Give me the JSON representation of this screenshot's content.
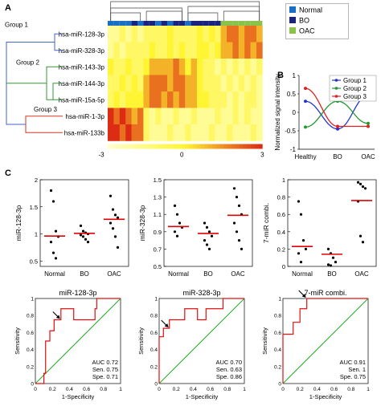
{
  "panel_labels": [
    "A",
    "B",
    "C"
  ],
  "chart_data": [
    {
      "panel": "A",
      "type": "heatmap",
      "rows": [
        "hsa-miR-128-3p",
        "hsa-miR-328-3p",
        "hsa-miR-143-3p",
        "hsa-miR-144-3p",
        "hsa-miR-15a-5p",
        "hsa-miR-1-3p",
        "hsa-miR-133b"
      ],
      "groups": [
        "Group 1",
        "Group 2",
        "Group 3"
      ],
      "group_colors": [
        "#4466cc",
        "#339933",
        "#dd3322"
      ],
      "column_classes": [
        "#1a6fc4",
        "#1a6fc4",
        "#1a6fc4",
        "#1a6fc4",
        "#1a237e",
        "#1a6fc4",
        "#1a237e",
        "#1a237e",
        "#1a6fc4",
        "#1a237e",
        "#1a6fc4",
        "#1a237e",
        "#1a237e",
        "#1a6fc4",
        "#1a237e",
        "#1a237e",
        "#1a237e",
        "#1a237e",
        "#1a237e",
        "#8bc34a",
        "#8bc34a",
        "#8bc34a",
        "#8bc34a",
        "#8bc34a",
        "#8bc34a",
        "#8bc34a"
      ],
      "legend": [
        {
          "label": "Normal",
          "color": "#1a6fc4"
        },
        {
          "label": "BO",
          "color": "#1a237e"
        },
        {
          "label": "OAC",
          "color": "#8bc34a"
        }
      ],
      "scale_ticks": [
        "-3",
        "0",
        "3"
      ],
      "values": [
        [
          -2,
          -2,
          -1,
          -2,
          -1,
          -2,
          -1,
          -1,
          -1,
          -1,
          0,
          -1,
          -1,
          -1,
          -1,
          0,
          -1,
          0,
          -1,
          1,
          2,
          2,
          1,
          2,
          2,
          1
        ],
        [
          -2,
          -1,
          -2,
          -1,
          -1,
          -1,
          -1,
          0,
          -1,
          -1,
          0,
          -1,
          0,
          -1,
          -1,
          0,
          0,
          -1,
          0,
          1,
          1,
          2,
          1,
          2,
          1,
          2
        ],
        [
          0,
          -1,
          -1,
          0,
          -1,
          -1,
          0,
          1,
          1,
          1,
          1,
          2,
          1,
          0,
          1,
          0,
          -1,
          -1,
          -2,
          -1,
          -2,
          -1,
          -2,
          -1,
          -2,
          -1
        ],
        [
          -1,
          -1,
          0,
          -1,
          0,
          -1,
          1,
          2,
          2,
          2,
          1,
          2,
          2,
          1,
          1,
          0,
          -1,
          -1,
          -1,
          -2,
          -1,
          -2,
          -1,
          -2,
          -1,
          -2
        ],
        [
          -1,
          0,
          -1,
          0,
          0,
          0,
          1,
          2,
          2,
          1,
          2,
          1,
          2,
          1,
          1,
          0,
          0,
          -1,
          -1,
          -1,
          -2,
          -1,
          -2,
          -1,
          -1,
          -2
        ],
        [
          3,
          2,
          3,
          2,
          1,
          2,
          -1,
          -2,
          -1,
          -2,
          -2,
          -1,
          -2,
          -2,
          -1,
          -2,
          -2,
          -2,
          -1,
          -2,
          -2,
          -1,
          -2,
          -1,
          -2,
          -2
        ],
        [
          3,
          3,
          2,
          3,
          2,
          2,
          -1,
          -2,
          -2,
          -2,
          -1,
          -2,
          -2,
          -1,
          -2,
          -2,
          -2,
          -1,
          -2,
          -2,
          -1,
          -2,
          -2,
          -2,
          -1,
          -2
        ]
      ]
    },
    {
      "panel": "B",
      "type": "line",
      "categories": [
        "Healthy",
        "BO",
        "OAC"
      ],
      "ylabel": "Normalized signal intensity",
      "ylim": [
        -1,
        1
      ],
      "yticks": [
        "1",
        "0.5",
        "0",
        "-0.5",
        "-1"
      ],
      "legend_position": "top-right",
      "series": [
        {
          "name": "Group 1",
          "color": "#2233cc",
          "values": [
            0.3,
            -0.45,
            0.45
          ]
        },
        {
          "name": "Group 2",
          "color": "#229933",
          "values": [
            -0.4,
            0.3,
            -0.3
          ]
        },
        {
          "name": "Group 3",
          "color": "#dd2222",
          "values": [
            0.65,
            -0.38,
            -0.38
          ]
        }
      ]
    },
    {
      "panel": "C",
      "type": "scatter",
      "ylabel": "miR-128-3p",
      "categories": [
        "Normal",
        "BO",
        "OAC"
      ],
      "ylim": [
        0.4,
        2.0
      ],
      "yticks": [
        "2",
        "1.5",
        "1",
        "0.5"
      ],
      "points": [
        [
          1.8,
          1.6,
          1.05,
          0.95,
          0.85,
          0.65,
          0.55
        ],
        [
          1.15,
          1.05,
          1.02,
          1.0,
          0.98,
          0.95,
          0.9,
          0.85
        ],
        [
          1.7,
          1.45,
          1.35,
          1.3,
          1.2,
          1.1,
          0.95,
          0.75
        ]
      ],
      "means": [
        0.96,
        1.01,
        1.27
      ]
    },
    {
      "panel": "C",
      "type": "scatter",
      "ylabel": "miR-328-3p",
      "categories": [
        "Normal",
        "BO",
        "OAC"
      ],
      "ylim": [
        0.5,
        1.5
      ],
      "yticks": [
        "1.5",
        "1.3",
        "1.1",
        "0.9",
        "0.7",
        "0.5"
      ],
      "points": [
        [
          1.2,
          1.1,
          1.0,
          0.95,
          0.9,
          0.85
        ],
        [
          1.0,
          0.95,
          0.9,
          0.85,
          0.8,
          0.75,
          0.7
        ],
        [
          1.4,
          1.3,
          1.2,
          1.1,
          1.0,
          0.9,
          0.8,
          0.7
        ]
      ],
      "means": [
        0.96,
        0.88,
        1.09
      ]
    },
    {
      "panel": "C",
      "type": "scatter",
      "ylabel": "7-miR combi.",
      "categories": [
        "Normal",
        "BO",
        "OAC"
      ],
      "ylim": [
        0,
        1
      ],
      "yticks": [
        "1",
        "0.8",
        "0.6",
        "0.4",
        "0.2",
        "0"
      ],
      "points": [
        [
          0.75,
          0.6,
          0.3,
          0.2,
          0.15,
          0.05
        ],
        [
          0.2,
          0.15,
          0.1,
          0.05,
          0.02,
          0.01
        ],
        [
          0.97,
          0.95,
          0.92,
          0.9,
          0.75,
          0.35,
          0.28
        ]
      ],
      "means": [
        0.23,
        0.14,
        0.76
      ]
    },
    {
      "panel": "C",
      "type": "line",
      "title": "miR-128-3p",
      "xlabel": "1-Specificity",
      "ylabel": "Sensitivity",
      "xticks": [
        "0",
        "0.2",
        "0.4",
        "0.6",
        "0.8",
        "1"
      ],
      "yticks": [
        "0",
        "0.2",
        "0.4",
        "0.6",
        "0.8",
        "1"
      ],
      "roc_x": [
        0,
        0.1,
        0.1,
        0.12,
        0.12,
        0.17,
        0.17,
        0.22,
        0.22,
        0.3,
        0.3,
        0.45,
        0.45,
        0.7,
        0.7,
        0.72,
        0.72,
        1
      ],
      "roc_y": [
        0,
        0,
        0.12,
        0.12,
        0.5,
        0.5,
        0.62,
        0.62,
        0.75,
        0.75,
        0.88,
        0.88,
        0.75,
        0.75,
        0.88,
        0.88,
        1,
        1
      ],
      "annotation": [
        "AUC 0.72",
        "Sen. 0.75",
        "Spe. 0.71"
      ],
      "arrow_at": [
        0.3,
        0.75
      ]
    },
    {
      "panel": "C",
      "type": "line",
      "title": "miR-328-3p",
      "xlabel": "1-Specificity",
      "ylabel": "Sensitivity",
      "xticks": [
        "0",
        "0.2",
        "0.4",
        "0.6",
        "0.8",
        "1"
      ],
      "yticks": [
        "0",
        "0.2",
        "0.4",
        "0.6",
        "0.8",
        "1"
      ],
      "roc_x": [
        0,
        0,
        0.05,
        0.05,
        0.12,
        0.12,
        0.3,
        0.3,
        0.45,
        0.45,
        0.55,
        0.55,
        0.75,
        0.75,
        1
      ],
      "roc_y": [
        0,
        0.55,
        0.55,
        0.65,
        0.65,
        0.75,
        0.75,
        0.88,
        0.88,
        0.75,
        0.75,
        0.88,
        0.88,
        1,
        1
      ],
      "annotation": [
        "AUC 0.70",
        "Sen. 0.63",
        "Spe. 0.86"
      ],
      "arrow_at": [
        0.12,
        0.65
      ]
    },
    {
      "panel": "C",
      "type": "line",
      "title": "7-miR combi.",
      "xlabel": "1-Specificity",
      "ylabel": "Sensitivity",
      "xticks": [
        "0",
        "0.2",
        "0.4",
        "0.6",
        "0.8",
        "1"
      ],
      "yticks": [
        "0",
        "0.2",
        "0.4",
        "0.6",
        "0.8",
        "1"
      ],
      "roc_x": [
        0,
        0,
        0.12,
        0.12,
        0.2,
        0.2,
        0.28,
        0.28,
        1
      ],
      "roc_y": [
        0,
        0.58,
        0.58,
        0.72,
        0.72,
        0.88,
        0.88,
        1,
        1
      ],
      "annotation": [
        "AUC 0.91",
        "Sen. 1",
        "Spe. 0.75"
      ],
      "arrow_at": [
        0.28,
        1.0
      ]
    }
  ]
}
